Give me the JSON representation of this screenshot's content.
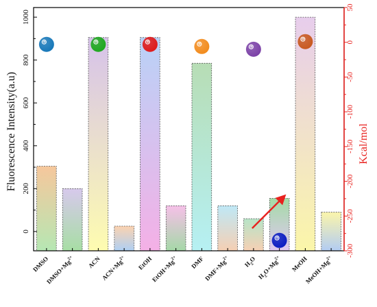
{
  "chart_data": {
    "type": "bar",
    "categories": [
      {
        "base": "DMSO",
        "sup": ""
      },
      {
        "base": "DMSO+Mg",
        "sup": "2+"
      },
      {
        "base": "ACN",
        "sup": ""
      },
      {
        "base": "ACN+Mg",
        "sup": "2+"
      },
      {
        "base": "EtOH",
        "sup": ""
      },
      {
        "base": "EtOH+Mg",
        "sup": "2+"
      },
      {
        "base": "DMF",
        "sup": ""
      },
      {
        "base": "DMF+Mg",
        "sup": "2+"
      },
      {
        "base": "H",
        "sub": "2",
        "rest": "O",
        "sup": ""
      },
      {
        "base": "H",
        "sub": "2",
        "rest": "O+Mg",
        "sup": "2+"
      },
      {
        "base": "MeOH",
        "sup": ""
      },
      {
        "base": "MeOH+Mg",
        "sup": "2+"
      }
    ],
    "values": [
      305,
      200,
      905,
      25,
      905,
      120,
      785,
      120,
      60,
      155,
      1000,
      90
    ],
    "ylabel": "Fluorescence Intensity(a.u)",
    "ylabel_right": "Kcal/mol",
    "ylim": [
      -90,
      1045
    ],
    "yticks": [
      0,
      200,
      400,
      600,
      800,
      1000
    ],
    "ylim_right": [
      -300,
      50
    ],
    "yticks_right": [
      50,
      0,
      -50,
      -100,
      -150,
      -200,
      -250,
      -300
    ],
    "energies": [
      {
        "category": "DMSO",
        "value": -3,
        "color": "#1476b8"
      },
      {
        "category": "ACN",
        "value": -3,
        "color": "#1ca81c"
      },
      {
        "category": "EtOH",
        "value": -3,
        "color": "#e01818"
      },
      {
        "category": "DMF",
        "value": -6,
        "color": "#f28a1a"
      },
      {
        "category": "H2O",
        "value": -10,
        "color": "#7a3fa6"
      },
      {
        "category": "H2O+Mg2+",
        "value": -285,
        "color": "#0a1cc2"
      },
      {
        "category": "MeOH",
        "value": 1,
        "color": "#c8581e"
      }
    ],
    "arrow": {
      "from_category": "H2O",
      "to_category": "H2O+Mg2+",
      "color": "#e8221f"
    },
    "bar_gradients": [
      [
        "#f6c79c",
        "#b6e7b3"
      ],
      [
        "#d7c9ec",
        "#a7dea4"
      ],
      [
        "#d6c2ea",
        "#fefcb0"
      ],
      [
        "#fbd2b0",
        "#aed0f4"
      ],
      [
        "#b9d2f7",
        "#f4b0e6"
      ],
      [
        "#f6c0e8",
        "#a5d8a8"
      ],
      [
        "#b7ddb5",
        "#b6f0f3"
      ],
      [
        "#bfe8f6",
        "#f5cfb3"
      ],
      [
        "#b7e4c7",
        "#f6d0b4"
      ],
      [
        "#a3dba5",
        "#e0c8f1"
      ],
      [
        "#e7cdec",
        "#fbf6a9"
      ],
      [
        "#fbf5ab",
        "#b2ccf3"
      ]
    ],
    "colors": {
      "left_axis": "#000000",
      "right_axis": "#e8221f"
    }
  }
}
